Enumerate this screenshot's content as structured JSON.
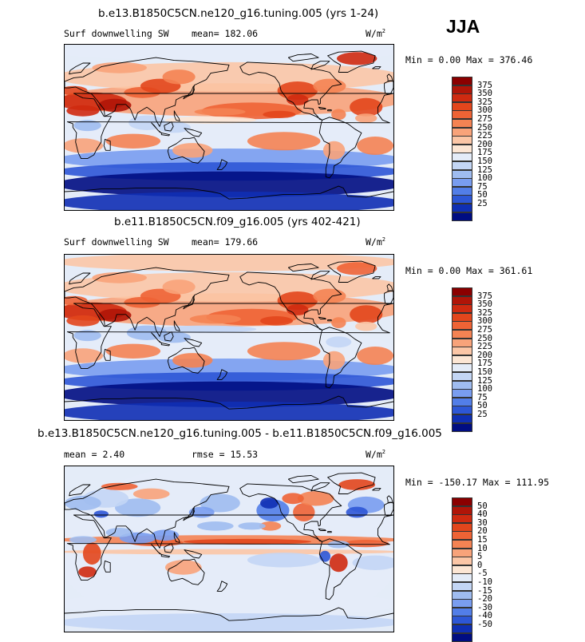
{
  "season_label": "JJA",
  "panels": [
    {
      "title": "b.e13.B1850C5CN.ne120_g16.tuning.005 (yrs 1-24)",
      "left_label": "Surf downwelling SW",
      "mean_text": "mean= 182.06",
      "units_base": "W/m",
      "units_exp": "2",
      "minmax_text": "Min =   0.00 Max = 376.46",
      "levels": [
        "375",
        "350",
        "325",
        "300",
        "275",
        "250",
        "225",
        "200",
        "175",
        "150",
        "125",
        "100",
        "75",
        "50",
        "25"
      ],
      "colors": [
        "#8b0000",
        "#b01508",
        "#cf2a10",
        "#e2461c",
        "#ee6335",
        "#f48353",
        "#f8a37a",
        "#fbc6a6",
        "#fce6d4",
        "#e4ecf8",
        "#c3d6f5",
        "#9fbcf0",
        "#799df0",
        "#527ee8",
        "#2d57d6",
        "#0f2fb4",
        "#000d82"
      ],
      "style": "sw1"
    },
    {
      "title": "b.e11.B1850C5CN.f09_g16.005 (yrs 402-421)",
      "left_label": "Surf downwelling SW",
      "mean_text": "mean= 179.66",
      "units_base": "W/m",
      "units_exp": "2",
      "minmax_text": "Min =   0.00 Max = 361.61",
      "levels": [
        "375",
        "350",
        "325",
        "300",
        "275",
        "250",
        "225",
        "200",
        "175",
        "150",
        "125",
        "100",
        "75",
        "50",
        "25"
      ],
      "colors": [
        "#8b0000",
        "#b01508",
        "#cf2a10",
        "#e2461c",
        "#ee6335",
        "#f48353",
        "#f8a37a",
        "#fbc6a6",
        "#fce6d4",
        "#e4ecf8",
        "#c3d6f5",
        "#9fbcf0",
        "#799df0",
        "#527ee8",
        "#2d57d6",
        "#0f2fb4",
        "#000d82"
      ],
      "style": "sw2"
    },
    {
      "title": "b.e13.B1850C5CN.ne120_g16.tuning.005 - b.e11.B1850C5CN.f09_g16.005",
      "left_label": "mean =    2.40",
      "mean_text": "rmse =   15.53",
      "units_base": "W/m",
      "units_exp": "2",
      "minmax_text": "Min = -150.17 Max = 111.95",
      "levels": [
        "50",
        "40",
        "30",
        "20",
        "15",
        "10",
        "5",
        "0",
        "-5",
        "-10",
        "-15",
        "-20",
        "-30",
        "-40",
        "-50"
      ],
      "colors": [
        "#8b0000",
        "#b01508",
        "#cf2a10",
        "#e2461c",
        "#ee6335",
        "#f48353",
        "#f8a37a",
        "#fbc6a6",
        "#fce6d4",
        "#e4ecf8",
        "#c3d6f5",
        "#9fbcf0",
        "#799df0",
        "#527ee8",
        "#2d57d6",
        "#0f2fb4",
        "#000d82"
      ],
      "style": "diff"
    }
  ]
}
